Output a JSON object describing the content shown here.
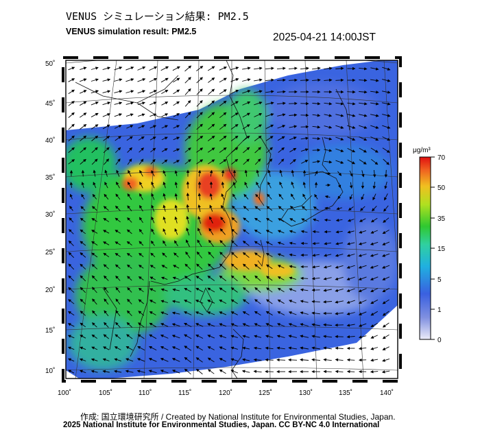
{
  "header": {
    "title_jp": "VENUS シミュレーション結果: PM2.5",
    "title_en": "VENUS simulation result: PM2.5",
    "timestamp": "2025-04-21 14:00JST"
  },
  "footer": {
    "credit": "作成: 国立環境研究所 / Created by National Institute for Environmental Studies, Japan.",
    "license": "2025 National Institute for Environmental Studies, Japan. CC BY-NC 4.0 International"
  },
  "map": {
    "lat_ticks": [
      "50˚",
      "45˚",
      "40˚",
      "35˚",
      "30˚",
      "25˚",
      "20˚",
      "15˚",
      "10˚"
    ],
    "lon_ticks": [
      "100˚",
      "105˚",
      "110˚",
      "115˚",
      "120˚",
      "125˚",
      "130˚",
      "135˚",
      "140˚"
    ],
    "lat_range": [
      9,
      50
    ],
    "lon_range": [
      100,
      141
    ],
    "field": "PM2.5 surface concentration with wind vectors"
  },
  "colorbar": {
    "unit": "μg/m³",
    "levels": [
      "70",
      "50",
      "35",
      "15",
      "5",
      "1",
      "0"
    ],
    "colors": [
      "#e8e8f8",
      "#6a7fe0",
      "#2aa0e8",
      "#3ad0c8",
      "#2cc838",
      "#9ee020",
      "#f0d020",
      "#f08020",
      "#e02010"
    ]
  }
}
